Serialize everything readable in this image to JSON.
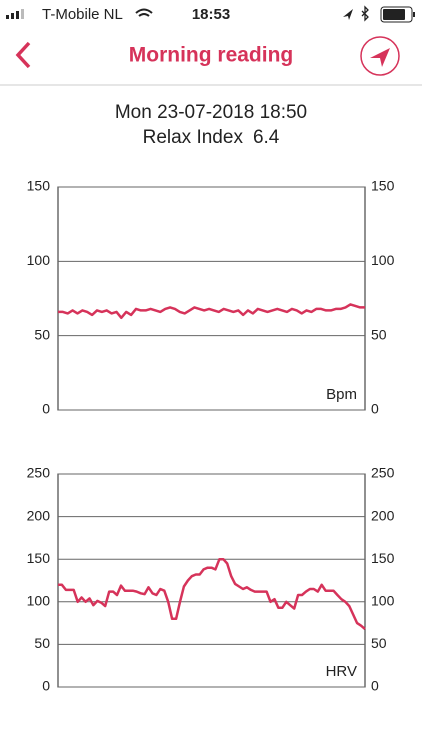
{
  "status_bar": {
    "carrier": "T-Mobile NL",
    "time": "18:53"
  },
  "header": {
    "title": "Morning reading"
  },
  "reading": {
    "date": "Mon 23-07-2018 18:50",
    "relax_label": "Relax Index",
    "relax_value": 6.4
  },
  "chart_data": [
    {
      "type": "line",
      "ylim": [
        0,
        150
      ],
      "yticks": [
        0,
        50,
        100,
        150
      ],
      "grid": true,
      "series": [
        {
          "name": "Bpm",
          "color": "#d6335a",
          "values": [
            66,
            66,
            65,
            67,
            65,
            67,
            66,
            64,
            67,
            66,
            67,
            65,
            66,
            62,
            66,
            64,
            68,
            67,
            67,
            68,
            67,
            66,
            68,
            69,
            68,
            66,
            65,
            67,
            69,
            68,
            67,
            68,
            67,
            66,
            68,
            67,
            66,
            67,
            64,
            67,
            65,
            68,
            67,
            66,
            67,
            68,
            67,
            66,
            68,
            67,
            65,
            67,
            66,
            68,
            68,
            67,
            67,
            68,
            68,
            69,
            71,
            70,
            69,
            69
          ]
        }
      ]
    },
    {
      "type": "line",
      "ylim": [
        0,
        250
      ],
      "yticks": [
        0,
        50,
        100,
        150,
        200,
        250
      ],
      "grid": true,
      "series": [
        {
          "name": "HRV",
          "color": "#d6335a",
          "values": [
            120,
            120,
            114,
            114,
            114,
            100,
            105,
            100,
            104,
            96,
            101,
            99,
            95,
            112,
            112,
            108,
            119,
            113,
            113,
            113,
            112,
            110,
            109,
            117,
            110,
            108,
            115,
            113,
            100,
            80,
            80,
            100,
            118,
            125,
            130,
            132,
            132,
            138,
            140,
            140,
            138,
            150,
            150,
            145,
            130,
            121,
            118,
            115,
            117,
            114,
            112,
            112,
            112,
            112,
            100,
            103,
            93,
            93,
            100,
            96,
            92,
            108,
            108,
            112,
            115,
            115,
            112,
            120,
            113,
            113,
            113,
            108,
            103,
            100,
            95,
            85,
            75,
            72,
            68
          ]
        }
      ]
    }
  ]
}
